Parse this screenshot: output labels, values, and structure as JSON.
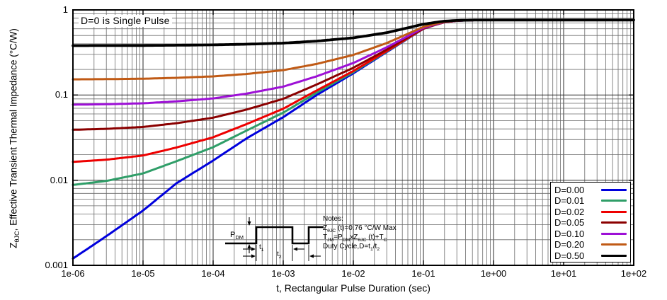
{
  "figure": {
    "title_note": "D=0 is Single Pulse",
    "x_axis": {
      "label": "t, Rectangular Pulse Duration (sec)",
      "ticks": [
        {
          "label": "1e-06",
          "exp": -6
        },
        {
          "label": "1e-05",
          "exp": -5
        },
        {
          "label": "1e-04",
          "exp": -4
        },
        {
          "label": "1e-03",
          "exp": -3
        },
        {
          "label": "1e-02",
          "exp": -2
        },
        {
          "label": "1e-01",
          "exp": -1
        },
        {
          "label": "1e+00",
          "exp": 0
        },
        {
          "label": "1e+01",
          "exp": 1
        },
        {
          "label": "1e+02",
          "exp": 2
        }
      ]
    },
    "y_axis": {
      "label_rich": "Z_{θJC}, Effective Transient Thermal Impedance (°C/W)",
      "ticks": [
        {
          "label": "1",
          "value": 1
        },
        {
          "label": "0.1",
          "value": 0.1
        },
        {
          "label": "0.01",
          "value": 0.01
        },
        {
          "label": "0.001",
          "value": 0.001
        }
      ]
    }
  },
  "legend": {
    "entries": [
      {
        "label": "D=0.00",
        "color": "#0000dd"
      },
      {
        "label": "D=0.01",
        "color": "#2f9e68"
      },
      {
        "label": "D=0.02",
        "color": "#ee0000"
      },
      {
        "label": "D=0.05",
        "color": "#8b0000"
      },
      {
        "label": "D=0.10",
        "color": "#9d10d6"
      },
      {
        "label": "D=0.20",
        "color": "#c05a15"
      },
      {
        "label": "D=0.50",
        "color": "#000000"
      }
    ]
  },
  "notes": {
    "lines": [
      "Notes:",
      "Z_{θJC} (t)=0.76 °C/W Max",
      "T_{JM}=P_{DM}xZ_{θJC} (t)+T_{C}",
      "Duty Cycle,D=t_{1}/t_{2}"
    ]
  },
  "waveform": {
    "pdm": "P_{DM}",
    "t1": "t_{1}",
    "t2": "t_{2}"
  },
  "chart_data": {
    "type": "line",
    "title": "Effective Transient Thermal Impedance, Junction-to-Case",
    "xlabel": "t, Rectangular Pulse Duration (sec)",
    "ylabel": "ZθJC, Effective Transient Thermal Impedance (°C/W)",
    "x_scale": "log",
    "y_scale": "log",
    "xlim": [
      1e-06,
      100
    ],
    "ylim": [
      0.001,
      1
    ],
    "grid": "major+minor",
    "legend_position": "bottom-right",
    "annotations": [
      "D=0 is Single Pulse",
      "ZθJC(t)=0.76 °C/W Max",
      "TJM=PDM×ZθJC(t)+TC",
      "Duty Cycle,D=t1/t2"
    ],
    "rth_jc_max_cw": 0.76,
    "x": [
      1e-06,
      3e-06,
      1e-05,
      3e-05,
      0.0001,
      0.0003,
      0.001,
      0.003,
      0.01,
      0.03,
      0.1,
      0.15,
      0.2,
      0.3,
      0.5,
      1,
      10,
      100
    ],
    "series": [
      {
        "name": "D=0.00",
        "duty": 0.0,
        "color": "#0000dd",
        "values": [
          0.0012,
          0.0022,
          0.0044,
          0.0092,
          0.017,
          0.031,
          0.055,
          0.1,
          0.18,
          0.32,
          0.6,
          0.67,
          0.715,
          0.745,
          0.757,
          0.76,
          0.76,
          0.76
        ]
      },
      {
        "name": "D=0.01",
        "duty": 0.01,
        "color": "#2f9e68",
        "values": [
          0.0088,
          0.0098,
          0.012,
          0.0167,
          0.0244,
          0.0383,
          0.0621,
          0.1066,
          0.1858,
          0.3244,
          0.6016,
          0.6709,
          0.7155,
          0.7452,
          0.757,
          0.76,
          0.76,
          0.76
        ]
      },
      {
        "name": "D=0.02",
        "duty": 0.02,
        "color": "#ee0000",
        "values": [
          0.0164,
          0.0174,
          0.0195,
          0.0242,
          0.0319,
          0.0456,
          0.0691,
          0.1132,
          0.1916,
          0.3288,
          0.6032,
          0.6718,
          0.7159,
          0.7453,
          0.7571,
          0.76,
          0.76,
          0.76
        ]
      },
      {
        "name": "D=0.05",
        "duty": 0.05,
        "color": "#8b0000",
        "values": [
          0.0391,
          0.0401,
          0.0422,
          0.0467,
          0.0542,
          0.0675,
          0.0903,
          0.133,
          0.209,
          0.342,
          0.608,
          0.6745,
          0.7173,
          0.7458,
          0.7572,
          0.76,
          0.76,
          0.76
        ]
      },
      {
        "name": "D=0.10",
        "duty": 0.1,
        "color": "#9d10d6",
        "values": [
          0.0771,
          0.078,
          0.08,
          0.0843,
          0.0913,
          0.1039,
          0.1255,
          0.166,
          0.238,
          0.364,
          0.616,
          0.679,
          0.7195,
          0.7465,
          0.7573,
          0.76,
          0.76,
          0.76
        ]
      },
      {
        "name": "D=0.20",
        "duty": 0.2,
        "color": "#c05a15",
        "values": [
          0.153,
          0.1538,
          0.1555,
          0.1594,
          0.1656,
          0.1768,
          0.196,
          0.232,
          0.296,
          0.408,
          0.632,
          0.688,
          0.724,
          0.748,
          0.7576,
          0.76,
          0.76,
          0.76
        ]
      },
      {
        "name": "D=0.50",
        "duty": 0.5,
        "color": "#000000",
        "values": [
          0.3806,
          0.3811,
          0.3822,
          0.3846,
          0.3885,
          0.3955,
          0.4075,
          0.43,
          0.47,
          0.54,
          0.68,
          0.715,
          0.7375,
          0.7525,
          0.7585,
          0.76,
          0.76,
          0.76
        ]
      }
    ]
  }
}
